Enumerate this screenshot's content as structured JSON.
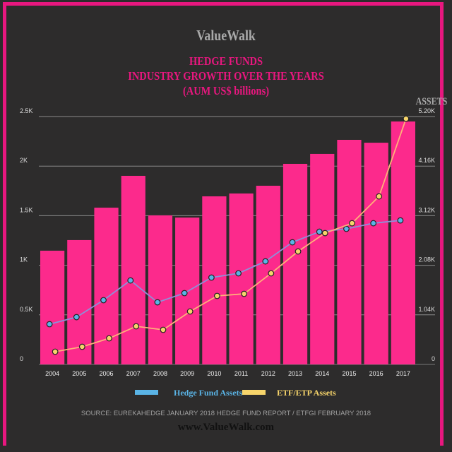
{
  "brand": "ValueWalk",
  "title_lines": [
    "HEDGE FUNDS",
    "INDUSTRY GROWTH OVER THE YEARS",
    "(AUM US$ billions)"
  ],
  "right_axis_title": "ASSETS",
  "colors": {
    "background": "#2d2c2c",
    "bars": "#fc2a8c",
    "frame": "#e8177f",
    "hedge_fund": "#5ab4e6",
    "etf": "#f7d56b"
  },
  "legend": [
    {
      "label": "Hedge Fund Assets",
      "color": "#5ab4e6"
    },
    {
      "label": "ETF/ETP Assets",
      "color": "#f7d56b"
    }
  ],
  "source": "SOURCE: EUREKAHEDGE JANUARY 2018 HEDGE FUND REPORT / ETFGI FEBRUARY 2018",
  "url": "www.ValueWalk.com",
  "chart_data": {
    "type": "bar",
    "categories": [
      "2004",
      "2005",
      "2006",
      "2007",
      "2008",
      "2009",
      "2010",
      "2011",
      "2012",
      "2013",
      "2014",
      "2015",
      "2016",
      "2017"
    ],
    "left_axis": {
      "ylim": [
        0,
        2500
      ],
      "ticks": [
        0,
        500,
        1000,
        1500,
        2000,
        2500
      ],
      "tick_labels": [
        "0",
        "0.5K",
        "1K",
        "1.5K",
        "2K",
        "2.5K"
      ]
    },
    "right_axis": {
      "title": "ASSETS",
      "ylim": [
        0,
        5200
      ],
      "ticks": [
        0,
        1040,
        2080,
        3120,
        4160,
        5200
      ],
      "tick_labels": [
        "0",
        "1.04K",
        "2.08K",
        "3.12K",
        "4.16K",
        "5.20K"
      ]
    },
    "grid": true,
    "legend_position": "bottom",
    "bars": {
      "axis": "left",
      "values": [
        1147,
        1254,
        1581,
        1902,
        1503,
        1481,
        1695,
        1724,
        1802,
        2023,
        2123,
        2265,
        2236,
        2450
      ]
    },
    "series": [
      {
        "name": "Hedge Fund Assets",
        "type": "line",
        "axis": "right",
        "values": [
          844,
          992,
          1348,
          1762,
          1303,
          1496,
          1822,
          1911,
          2162,
          2562,
          2784,
          2844,
          2962,
          3021
        ]
      },
      {
        "name": "ETF/ETP Assets",
        "type": "line",
        "axis": "right",
        "values": [
          267,
          370,
          548,
          800,
          726,
          1111,
          1437,
          1481,
          1911,
          2370,
          2755,
          2962,
          3525,
          5154
        ]
      }
    ]
  }
}
